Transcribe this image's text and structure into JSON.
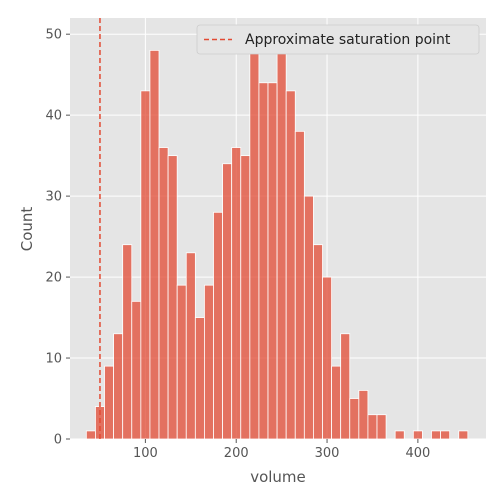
{
  "chart_data": {
    "type": "bar",
    "subtype": "histogram",
    "xlabel": "volume",
    "ylabel": "Count",
    "xlim": [
      17,
      475
    ],
    "ylim": [
      0,
      52
    ],
    "xticks": [
      100,
      200,
      300,
      400
    ],
    "yticks": [
      0,
      10,
      20,
      30,
      40,
      50
    ],
    "grid": true,
    "legend_position": "top-right",
    "bin_width": 10,
    "bins": [
      {
        "x0": 35,
        "x1": 45,
        "count": 1
      },
      {
        "x0": 45,
        "x1": 55,
        "count": 4
      },
      {
        "x0": 55,
        "x1": 65,
        "count": 9
      },
      {
        "x0": 65,
        "x1": 75,
        "count": 13
      },
      {
        "x0": 75,
        "x1": 85,
        "count": 24
      },
      {
        "x0": 85,
        "x1": 95,
        "count": 17
      },
      {
        "x0": 95,
        "x1": 105,
        "count": 43
      },
      {
        "x0": 105,
        "x1": 115,
        "count": 48
      },
      {
        "x0": 115,
        "x1": 125,
        "count": 36
      },
      {
        "x0": 125,
        "x1": 135,
        "count": 35
      },
      {
        "x0": 135,
        "x1": 145,
        "count": 19
      },
      {
        "x0": 145,
        "x1": 155,
        "count": 23
      },
      {
        "x0": 155,
        "x1": 165,
        "count": 15
      },
      {
        "x0": 165,
        "x1": 175,
        "count": 19
      },
      {
        "x0": 175,
        "x1": 185,
        "count": 28
      },
      {
        "x0": 185,
        "x1": 195,
        "count": 34
      },
      {
        "x0": 195,
        "x1": 205,
        "count": 36
      },
      {
        "x0": 205,
        "x1": 215,
        "count": 35
      },
      {
        "x0": 215,
        "x1": 225,
        "count": 49
      },
      {
        "x0": 225,
        "x1": 235,
        "count": 44
      },
      {
        "x0": 235,
        "x1": 245,
        "count": 44
      },
      {
        "x0": 245,
        "x1": 255,
        "count": 49
      },
      {
        "x0": 255,
        "x1": 265,
        "count": 43
      },
      {
        "x0": 265,
        "x1": 275,
        "count": 38
      },
      {
        "x0": 275,
        "x1": 285,
        "count": 30
      },
      {
        "x0": 285,
        "x1": 295,
        "count": 24
      },
      {
        "x0": 295,
        "x1": 305,
        "count": 20
      },
      {
        "x0": 305,
        "x1": 315,
        "count": 9
      },
      {
        "x0": 315,
        "x1": 325,
        "count": 13
      },
      {
        "x0": 325,
        "x1": 335,
        "count": 5
      },
      {
        "x0": 335,
        "x1": 345,
        "count": 6
      },
      {
        "x0": 345,
        "x1": 355,
        "count": 3
      },
      {
        "x0": 355,
        "x1": 365,
        "count": 3
      },
      {
        "x0": 375,
        "x1": 385,
        "count": 1
      },
      {
        "x0": 395,
        "x1": 405,
        "count": 1
      },
      {
        "x0": 415,
        "x1": 425,
        "count": 1
      },
      {
        "x0": 425,
        "x1": 435,
        "count": 1
      },
      {
        "x0": 445,
        "x1": 455,
        "count": 1
      }
    ],
    "reference_line": {
      "x": 50,
      "label": "Approximate saturation point",
      "style": "dashed",
      "color": "#E24A33"
    },
    "bar_color": "#E24A33",
    "background_color": "#E5E5E5"
  }
}
